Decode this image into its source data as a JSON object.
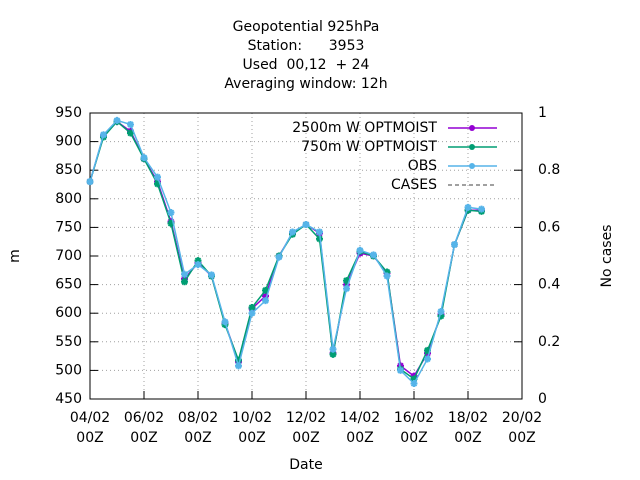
{
  "chart_data": {
    "type": "line",
    "title": [
      "Geopotential 925hPa",
      "Station:      3953",
      "Used  00,12  + 24",
      "Averaging window: 12h"
    ],
    "x_label": "Date",
    "y_label": "m",
    "y2_label": "No cases",
    "x": [
      "04/02 00Z",
      "04/02 12Z",
      "05/02 00Z",
      "05/02 12Z",
      "06/02 00Z",
      "06/02 12Z",
      "07/02 00Z",
      "07/02 12Z",
      "08/02 00Z",
      "08/02 12Z",
      "09/02 00Z",
      "09/02 12Z",
      "10/02 00Z",
      "10/02 12Z",
      "11/02 00Z",
      "11/02 12Z",
      "12/02 00Z",
      "12/02 12Z",
      "13/02 00Z",
      "13/02 12Z",
      "14/02 00Z",
      "14/02 12Z",
      "15/02 00Z",
      "15/02 12Z",
      "16/02 00Z",
      "16/02 12Z",
      "17/02 00Z",
      "17/02 12Z",
      "18/02 00Z",
      "18/02 12Z"
    ],
    "series": [
      {
        "name": "2500m W OPTMOIST",
        "color": "#9400d3",
        "values": [
          830,
          910,
          935,
          918,
          870,
          830,
          760,
          660,
          688,
          665,
          583,
          515,
          608,
          630,
          700,
          740,
          755,
          740,
          530,
          650,
          705,
          700,
          670,
          508,
          490,
          530,
          598,
          720,
          780,
          780
        ]
      },
      {
        "name": "750m W OPTMOIST",
        "color": "#009e73",
        "values": [
          830,
          908,
          935,
          915,
          870,
          826,
          757,
          655,
          692,
          665,
          580,
          518,
          610,
          640,
          700,
          738,
          755,
          730,
          528,
          657,
          708,
          700,
          672,
          502,
          485,
          535,
          595,
          720,
          780,
          778
        ]
      },
      {
        "name": "OBS",
        "color": "#56b4e9",
        "values": [
          830,
          912,
          937,
          930,
          872,
          838,
          776,
          668,
          685,
          667,
          585,
          508,
          600,
          622,
          698,
          742,
          755,
          742,
          537,
          643,
          710,
          702,
          665,
          500,
          477,
          520,
          603,
          720,
          785,
          782
        ]
      },
      {
        "name": "CASES",
        "color": "#808080",
        "axis": "y2",
        "dashed": true,
        "values": [
          null,
          null,
          null,
          null,
          null,
          null,
          null,
          null,
          null,
          null,
          null,
          null,
          null,
          null,
          null,
          null,
          null,
          null,
          null,
          null,
          null,
          null,
          null,
          null,
          null,
          null,
          null,
          null,
          null,
          null
        ]
      }
    ],
    "xlim": [
      "04/02 00Z",
      "20/02 00Z"
    ],
    "xticks": [
      "04/02 00Z",
      "06/02 00Z",
      "08/02 00Z",
      "10/02 00Z",
      "12/02 00Z",
      "14/02 00Z",
      "16/02 00Z",
      "18/02 00Z",
      "20/02 00Z"
    ],
    "ylim": [
      450,
      950
    ],
    "yticks": [
      450,
      500,
      550,
      600,
      650,
      700,
      750,
      800,
      850,
      900,
      950
    ],
    "y2lim": [
      0,
      1
    ],
    "y2ticks": [
      0,
      0.2,
      0.4,
      0.6,
      0.8,
      1
    ],
    "grid": true,
    "legend": "top-right"
  }
}
